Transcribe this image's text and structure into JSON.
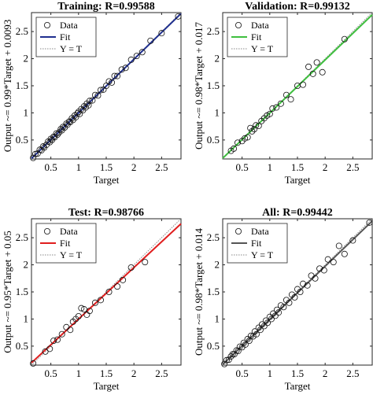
{
  "chart_data": [
    {
      "type": "scatter",
      "title": "Training: R=0.99588",
      "xlabel": "Target",
      "ylabel": "Output ~= 0.99*Target + 0.0093",
      "xlim": [
        0.15,
        2.85
      ],
      "ylim": [
        0.15,
        2.85
      ],
      "xticks": [
        "0.5",
        "1",
        "1.5",
        "2",
        "2.5"
      ],
      "yticks": [
        "0.5",
        "1",
        "1.5",
        "2",
        "2.5"
      ],
      "grid": false,
      "legend_position": "top-left",
      "legend": [
        "Data",
        "Fit",
        "Y = T"
      ],
      "fit": {
        "slope": 0.99,
        "intercept": 0.0093,
        "color": "#1f2f8f"
      },
      "x": [
        0.18,
        0.22,
        0.26,
        0.3,
        0.33,
        0.36,
        0.38,
        0.42,
        0.45,
        0.48,
        0.5,
        0.52,
        0.55,
        0.57,
        0.6,
        0.62,
        0.65,
        0.68,
        0.7,
        0.72,
        0.75,
        0.78,
        0.8,
        0.83,
        0.85,
        0.88,
        0.9,
        0.93,
        0.95,
        0.98,
        1.0,
        1.02,
        1.05,
        1.08,
        1.1,
        1.13,
        1.15,
        1.18,
        1.2,
        1.25,
        1.3,
        1.35,
        1.4,
        1.45,
        1.5,
        1.55,
        1.6,
        1.65,
        1.7,
        1.78,
        1.85,
        1.95,
        2.05,
        2.15,
        2.3,
        2.5,
        2.8
      ],
      "y": [
        0.17,
        0.24,
        0.25,
        0.32,
        0.31,
        0.38,
        0.36,
        0.41,
        0.47,
        0.46,
        0.52,
        0.5,
        0.56,
        0.55,
        0.62,
        0.6,
        0.64,
        0.7,
        0.68,
        0.74,
        0.73,
        0.8,
        0.78,
        0.84,
        0.83,
        0.9,
        0.87,
        0.95,
        0.92,
        0.99,
        1.02,
        0.98,
        1.07,
        1.05,
        1.12,
        1.1,
        1.17,
        1.14,
        1.22,
        1.23,
        1.33,
        1.32,
        1.42,
        1.43,
        1.5,
        1.58,
        1.56,
        1.68,
        1.68,
        1.8,
        1.83,
        1.98,
        2.05,
        2.12,
        2.33,
        2.47,
        2.78
      ]
    },
    {
      "type": "scatter",
      "title": "Validation: R=0.99132",
      "xlabel": "Target",
      "ylabel": "Output ~= 0.98*Target + 0.017",
      "xlim": [
        0.15,
        2.85
      ],
      "ylim": [
        0.15,
        2.85
      ],
      "xticks": [
        "0.5",
        "1",
        "1.5",
        "2",
        "2.5"
      ],
      "yticks": [
        "0.5",
        "1",
        "1.5",
        "2",
        "2.5"
      ],
      "grid": false,
      "legend_position": "top-left",
      "legend": [
        "Data",
        "Fit",
        "Y = T"
      ],
      "fit": {
        "slope": 0.98,
        "intercept": 0.017,
        "color": "#3fbf3f"
      },
      "x": [
        0.3,
        0.35,
        0.42,
        0.5,
        0.55,
        0.6,
        0.65,
        0.68,
        0.72,
        0.75,
        0.8,
        0.85,
        0.9,
        0.95,
        1.0,
        1.05,
        1.12,
        1.2,
        1.3,
        1.38,
        1.5,
        1.6,
        1.7,
        1.78,
        1.85,
        1.95,
        2.35
      ],
      "y": [
        0.3,
        0.34,
        0.45,
        0.48,
        0.53,
        0.55,
        0.72,
        0.66,
        0.7,
        0.77,
        0.76,
        0.85,
        0.9,
        0.95,
        0.98,
        1.08,
        1.1,
        1.17,
        1.33,
        1.25,
        1.5,
        1.52,
        1.85,
        1.72,
        1.93,
        1.75,
        2.36
      ]
    },
    {
      "type": "scatter",
      "title": "Test: R=0.98766",
      "xlabel": "Target",
      "ylabel": "Output ~= 0.95*Target + 0.05",
      "xlim": [
        0.15,
        2.85
      ],
      "ylim": [
        0.15,
        2.85
      ],
      "xticks": [
        "0.5",
        "1",
        "1.5",
        "2",
        "2.5"
      ],
      "yticks": [
        "0.5",
        "1",
        "1.5",
        "2",
        "2.5"
      ],
      "grid": false,
      "legend_position": "top-left",
      "legend": [
        "Data",
        "Fit",
        "Y = T"
      ],
      "fit": {
        "slope": 0.95,
        "intercept": 0.05,
        "color": "#e01e1e"
      },
      "x": [
        0.18,
        0.4,
        0.48,
        0.55,
        0.62,
        0.7,
        0.78,
        0.85,
        0.9,
        0.95,
        1.0,
        1.05,
        1.1,
        1.15,
        1.2,
        1.3,
        1.4,
        1.55,
        1.7,
        1.8,
        1.95,
        2.2
      ],
      "y": [
        0.18,
        0.4,
        0.45,
        0.6,
        0.62,
        0.72,
        0.85,
        0.8,
        0.95,
        1.0,
        1.05,
        1.2,
        1.18,
        1.08,
        1.15,
        1.3,
        1.35,
        1.5,
        1.6,
        1.72,
        1.95,
        2.05
      ]
    },
    {
      "type": "scatter",
      "title": "All: R=0.99442",
      "xlabel": "Target",
      "ylabel": "Output ~= 0.98*Target + 0.014",
      "xlim": [
        0.15,
        2.85
      ],
      "ylim": [
        0.15,
        2.85
      ],
      "xticks": [
        "0.5",
        "1",
        "1.5",
        "2",
        "2.5"
      ],
      "yticks": [
        "0.5",
        "1",
        "1.5",
        "2",
        "2.5"
      ],
      "grid": false,
      "legend_position": "top-left",
      "legend": [
        "Data",
        "Fit",
        "Y = T"
      ],
      "fit": {
        "slope": 0.98,
        "intercept": 0.014,
        "color": "#555555"
      },
      "x": [
        0.18,
        0.22,
        0.26,
        0.3,
        0.33,
        0.36,
        0.4,
        0.43,
        0.46,
        0.5,
        0.53,
        0.56,
        0.6,
        0.63,
        0.66,
        0.7,
        0.73,
        0.76,
        0.8,
        0.83,
        0.86,
        0.9,
        0.93,
        0.96,
        1.0,
        1.03,
        1.06,
        1.1,
        1.13,
        1.16,
        1.2,
        1.25,
        1.3,
        1.35,
        1.4,
        1.45,
        1.5,
        1.55,
        1.6,
        1.68,
        1.75,
        1.82,
        1.9,
        1.98,
        2.05,
        2.15,
        2.25,
        2.35,
        2.5,
        2.8
      ],
      "y": [
        0.17,
        0.24,
        0.25,
        0.31,
        0.35,
        0.35,
        0.42,
        0.41,
        0.49,
        0.48,
        0.56,
        0.53,
        0.63,
        0.6,
        0.69,
        0.68,
        0.77,
        0.72,
        0.84,
        0.8,
        0.9,
        0.87,
        0.97,
        0.93,
        1.04,
        1.0,
        1.1,
        1.06,
        1.17,
        1.12,
        1.25,
        1.22,
        1.35,
        1.3,
        1.45,
        1.4,
        1.55,
        1.5,
        1.65,
        1.62,
        1.8,
        1.75,
        1.93,
        1.9,
        2.1,
        2.05,
        2.35,
        2.2,
        2.45,
        2.78
      ]
    }
  ]
}
